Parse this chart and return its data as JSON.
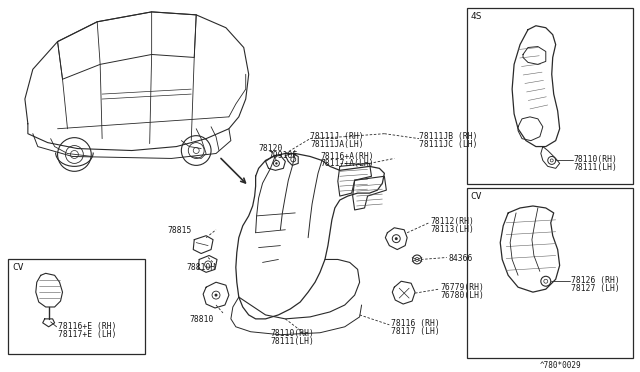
{
  "bg_color": "#f5f5f0",
  "border_color": "#333333",
  "line_color": "#333333",
  "figure_width": 6.4,
  "figure_height": 3.72,
  "dpi": 100,
  "diagram_code": "^780*0029",
  "labels": {
    "78111J_RH": "78111J (RH)",
    "78111JA_LH": "78111JA(LH)",
    "78111JB_RH": "78111JB (RH)",
    "78111JC_LH": "78111JC (LH)",
    "78116A_RH": "78116+A(RH)",
    "78117A_LH": "78117+A(LH)",
    "78120": "78120",
    "79910F": "79910F",
    "78112_RH": "78112(RH)",
    "78113_LH": "78113(LH)",
    "84366": "84366",
    "76779_RH": "76779(RH)",
    "76780_LH": "76780(LH)",
    "78815": "78815",
    "78810H": "78810H",
    "78810": "78810",
    "78110_RH_bot": "78110(RH)",
    "78111_LH_bot": "78111(LH)",
    "78116_RH_bot": "78116 (RH)",
    "78117_LH_bot": "78117 (LH)",
    "78110_RH_4s": "78110(RH)",
    "78111_LH_4s": "78111(LH)",
    "78126_RH": "78126 (RH)",
    "78127_LH": "78127 (LH)",
    "78116E_RH": "78116+E (RH)",
    "78117E_LH": "78117+E (LH)",
    "4S": "4S",
    "CV_right": "CV",
    "CV_left": "CV"
  }
}
